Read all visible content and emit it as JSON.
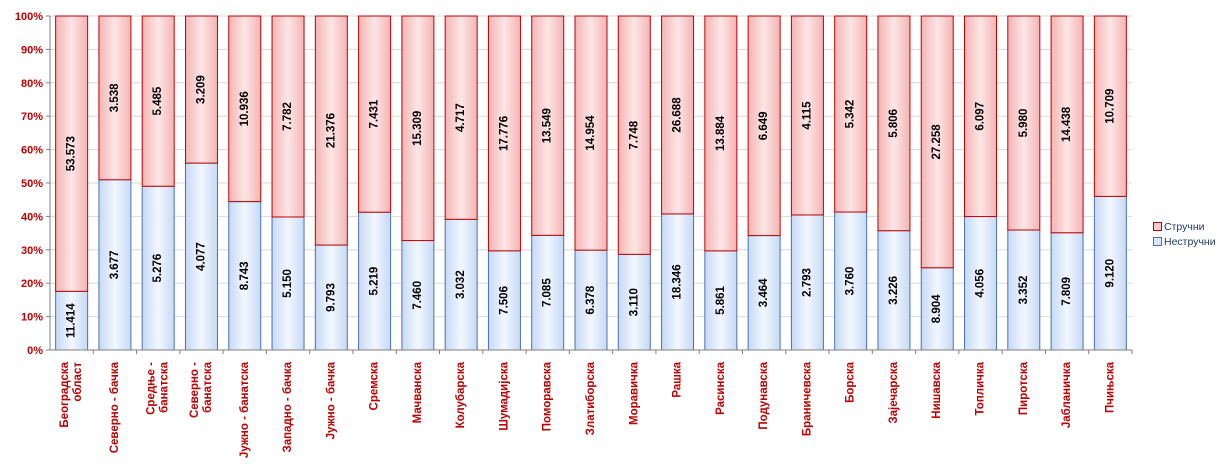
{
  "chart_data": {
    "type": "bar",
    "stacked": "percent",
    "orientation": "vertical",
    "y_ticks": [
      "0%",
      "10%",
      "20%",
      "30%",
      "40%",
      "50%",
      "60%",
      "70%",
      "80%",
      "90%",
      "100%"
    ],
    "ylim": [
      0,
      100
    ],
    "grid": true,
    "legend_position": "right",
    "categories": [
      [
        "Београдска",
        "област"
      ],
      [
        "Северно - бачка"
      ],
      [
        "Средње -",
        "банатска"
      ],
      [
        "Северно -",
        "банатска"
      ],
      [
        "Јужно - банатска"
      ],
      [
        "Западно - бачка"
      ],
      [
        "Јужно - бачка"
      ],
      [
        "Сремска"
      ],
      [
        "Мачванска"
      ],
      [
        "Колубарска"
      ],
      [
        "Шумадијска"
      ],
      [
        "Поморавска"
      ],
      [
        "Златиборска"
      ],
      [
        "Моравичка"
      ],
      [
        "Рашка"
      ],
      [
        "Расинска"
      ],
      [
        "Подунавска"
      ],
      [
        "Браничевска"
      ],
      [
        "Борска"
      ],
      [
        "Зајечарска"
      ],
      [
        "Нишавска"
      ],
      [
        "Топличка"
      ],
      [
        "Пиротска"
      ],
      [
        "Јабланичка"
      ],
      [
        "Пчињска"
      ]
    ],
    "series": [
      {
        "name": "Нестручни",
        "color": "#dbe8fb",
        "stroke": "#4a72b0",
        "values": [
          11414,
          3677,
          5276,
          4077,
          8743,
          5150,
          9793,
          5219,
          7460,
          3032,
          7506,
          7085,
          6378,
          3110,
          18346,
          5861,
          3464,
          2793,
          3760,
          3226,
          8904,
          4056,
          3352,
          7809,
          9120
        ],
        "labels": [
          "11.414",
          "3.677",
          "5.276",
          "4.077",
          "8.743",
          "5.150",
          "9.793",
          "5.219",
          "7.460",
          "3.032",
          "7.506",
          "7.085",
          "6.378",
          "3.110",
          "18.346",
          "5.861",
          "3.464",
          "2.793",
          "3.760",
          "3.226",
          "8.904",
          "4.056",
          "3.352",
          "7.809",
          "9.120"
        ]
      },
      {
        "name": "Стручни",
        "color": "#f8cccc",
        "stroke": "#c00000",
        "values": [
          53573,
          3538,
          5485,
          3209,
          10936,
          7782,
          21376,
          7431,
          15309,
          4717,
          17776,
          13549,
          14954,
          7748,
          26688,
          13884,
          6649,
          4115,
          5342,
          5806,
          27258,
          6097,
          5980,
          14438,
          10709
        ],
        "labels": [
          "53.573",
          "3.538",
          "5.485",
          "3.209",
          "10.936",
          "7.782",
          "21.376",
          "7.431",
          "15.309",
          "4.717",
          "17.776",
          "13.549",
          "14.954",
          "7.748",
          "26.688",
          "13.884",
          "6.649",
          "4.115",
          "5.342",
          "5.806",
          "27.258",
          "6.097",
          "5.980",
          "14.438",
          "10.709"
        ]
      }
    ]
  },
  "legend": {
    "items": [
      {
        "label": "Стручни",
        "color": "#f8cccc",
        "stroke": "#c00000"
      },
      {
        "label": "Нестручни",
        "color": "#dbe8fb",
        "stroke": "#4a72b0"
      }
    ]
  }
}
